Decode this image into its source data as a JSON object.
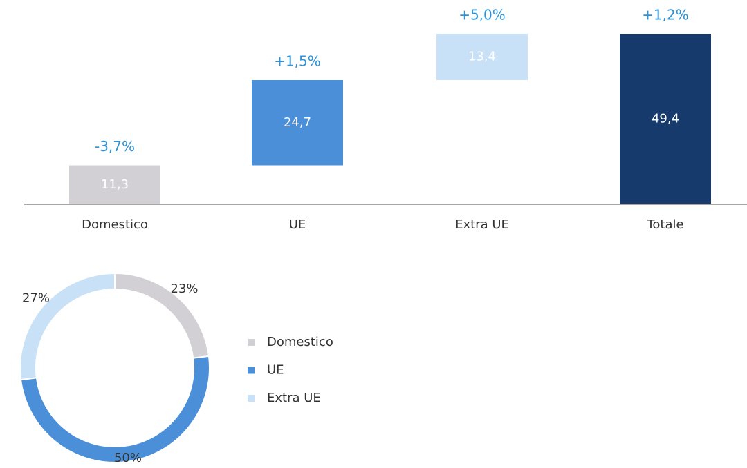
{
  "chart_data": [
    {
      "type": "waterfall",
      "categories": [
        "Domestico",
        "UE",
        "Extra UE",
        "Totale"
      ],
      "values": [
        11.3,
        24.7,
        13.4,
        49.4
      ],
      "value_labels": [
        "11,3",
        "24,7",
        "13,4",
        "49,4"
      ],
      "annotations": [
        "-3,7%",
        "+1,5%",
        "+5,0%",
        "+1,2%"
      ],
      "is_total": [
        false,
        false,
        false,
        true
      ],
      "colors": [
        "#d3d0d5",
        "#4a8fd8",
        "#c9e1f7",
        "#173a6c"
      ],
      "ylim": [
        0,
        50
      ]
    },
    {
      "type": "donut",
      "categories": [
        "Domestico",
        "UE",
        "Extra UE"
      ],
      "values": [
        23,
        50,
        27
      ],
      "value_labels": [
        "23%",
        "50%",
        "27%"
      ],
      "colors": [
        "#d3d0d5",
        "#4a8fd8",
        "#c9e1f7"
      ],
      "legend": "right"
    }
  ]
}
